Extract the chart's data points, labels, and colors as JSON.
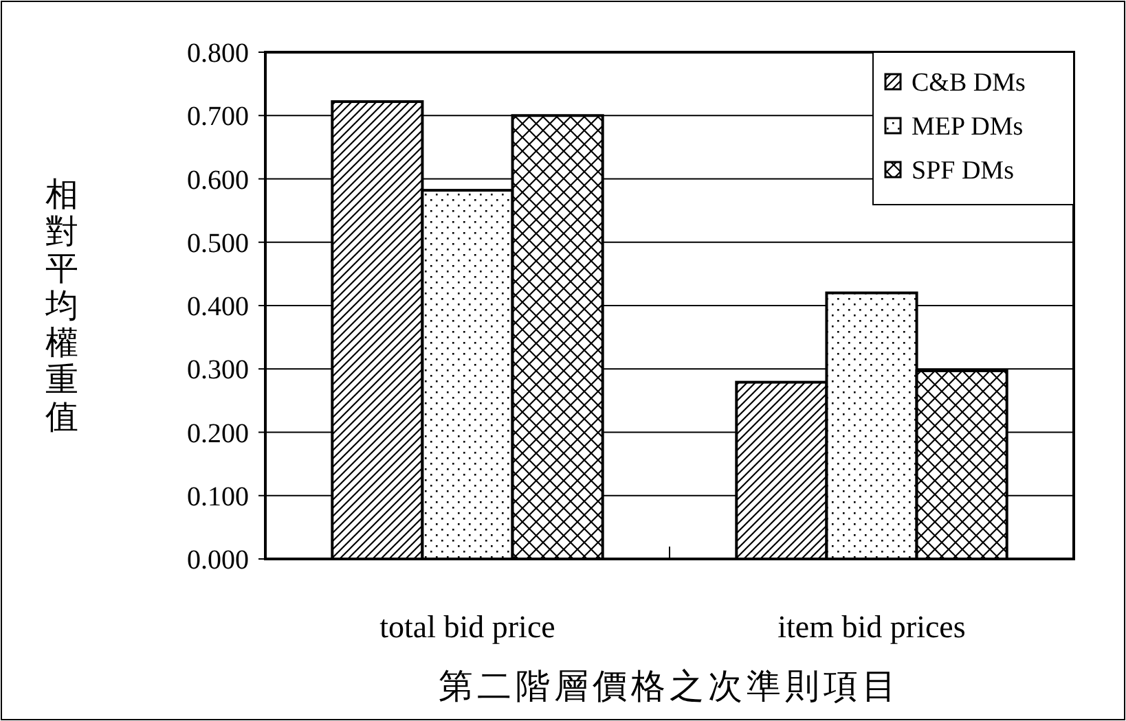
{
  "chart_data": {
    "type": "bar",
    "xlabel": "第二階層價格之次準則項目",
    "ylabel": "相對平均權重值",
    "categories": [
      "total bid price",
      "item bid prices"
    ],
    "series": [
      {
        "name": "C&B DMs",
        "color": "#000000",
        "values": [
          0.722,
          0.279
        ]
      },
      {
        "name": "MEP DMs",
        "color": "#000000",
        "values": [
          0.582,
          0.42
        ]
      },
      {
        "name": "SPF DMs",
        "color": "#000000",
        "values": [
          0.7,
          0.297
        ]
      }
    ],
    "ylim": [
      0,
      0.8
    ],
    "yticks": [
      {
        "value": 0,
        "label": "0.000"
      },
      {
        "value": 0.1,
        "label": "0.100"
      },
      {
        "value": 0.2,
        "label": "0.200"
      },
      {
        "value": 0.3,
        "label": "0.300"
      },
      {
        "value": 0.4,
        "label": "0.400"
      },
      {
        "value": 0.5,
        "label": "0.500"
      },
      {
        "value": 0.6,
        "label": "0.600"
      },
      {
        "value": 0.7,
        "label": "0.700"
      },
      {
        "value": 0.8,
        "label": "0.800"
      }
    ],
    "grid": "y",
    "legend": "top right"
  }
}
